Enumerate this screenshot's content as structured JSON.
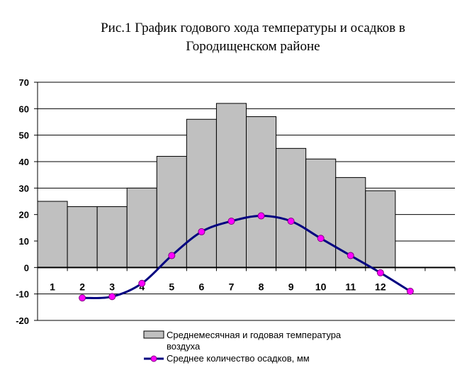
{
  "chart_data": {
    "type": "bar",
    "title_lines": [
      "Рис.1 График годового хода температуры и осадков в",
      "Городищенском районе"
    ],
    "categories": [
      "1",
      "2",
      "3",
      "4",
      "5",
      "6",
      "7",
      "8",
      "9",
      "10",
      "11",
      "12"
    ],
    "ylim": [
      -20,
      70
    ],
    "yticks": [
      -20,
      -10,
      0,
      10,
      20,
      30,
      40,
      50,
      60,
      70
    ],
    "grid": true,
    "legend_position": "bottom",
    "series": [
      {
        "name": "Среднемесячная и годовая температура воздуха",
        "type": "bar",
        "color": "#c0c0c0",
        "values": [
          25,
          23,
          23,
          30,
          42,
          56,
          62,
          57,
          45,
          41,
          34,
          29
        ]
      },
      {
        "name": "Среднее количество осадков, мм",
        "type": "line",
        "color": "#000080",
        "marker_color": "#ff00ff",
        "values": [
          -11.5,
          -11,
          -6,
          4.5,
          13.5,
          17.5,
          19.5,
          17.5,
          11,
          4.5,
          -2,
          -9
        ]
      }
    ]
  }
}
